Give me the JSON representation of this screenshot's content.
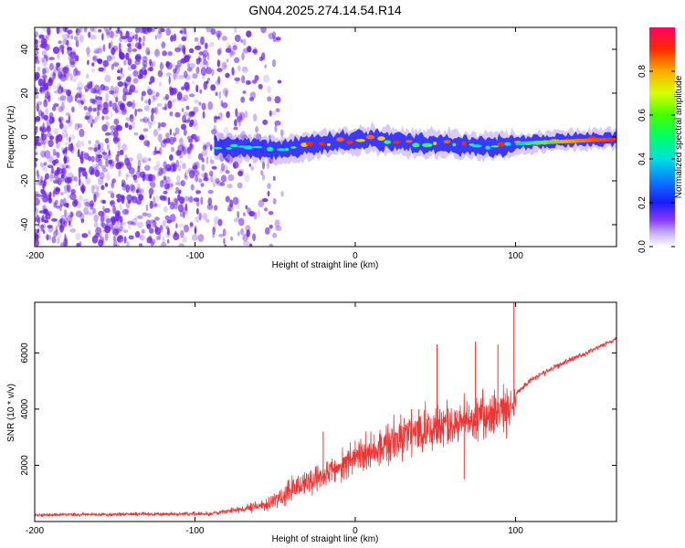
{
  "title": "GN04.2025.274.14.54.R14",
  "colors": {
    "snr_line": "#f03434",
    "noise_purple": "#6a1fe8",
    "axis": "#000000",
    "tick": "#000000"
  },
  "chart_data": [
    {
      "type": "heatmap",
      "name": "spectrogram",
      "xlabel": "Height of straight line (km)",
      "ylabel": "Frequency (Hz)",
      "xlim": [
        -200,
        163
      ],
      "ylim": [
        -50,
        50
      ],
      "xticks": [
        -200,
        -100,
        0,
        100
      ],
      "yticks": [
        -40,
        -20,
        0,
        20,
        40
      ],
      "xtick_labels": [
        "-200",
        "-100",
        "0",
        "100"
      ],
      "ytick_labels": [
        "-40",
        "-20",
        "0",
        "20",
        "40"
      ],
      "noise_region_km": [
        -200,
        -55
      ],
      "signal_start_km": -88,
      "signal_track_hz": [
        [
          -88,
          -4
        ],
        [
          -70,
          -5
        ],
        [
          -50,
          -6
        ],
        [
          -30,
          -4
        ],
        [
          -10,
          -2
        ],
        [
          0,
          -2
        ],
        [
          10,
          -1
        ],
        [
          20,
          -2
        ],
        [
          30,
          -2
        ],
        [
          40,
          -3
        ],
        [
          50,
          -3
        ],
        [
          60,
          -3
        ],
        [
          70,
          -4
        ],
        [
          80,
          -4
        ],
        [
          90,
          -4
        ],
        [
          100,
          -3
        ],
        [
          120,
          -2
        ],
        [
          140,
          -1
        ],
        [
          163,
          -1
        ]
      ],
      "colorbar": {
        "label": "Normalized spectral amplitude",
        "range": [
          0,
          1
        ],
        "ticks": [
          0.0,
          0.2,
          0.4,
          0.6,
          0.8
        ],
        "tick_labels": [
          "0.0",
          "0.2",
          "0.4",
          "0.6",
          "0.8"
        ]
      }
    },
    {
      "type": "line",
      "name": "snr",
      "xlabel": "Height of straight line (km)",
      "ylabel": "SNR (10 * v/v)",
      "xlim": [
        -200,
        163
      ],
      "ylim": [
        0,
        7800
      ],
      "xticks": [
        -200,
        -100,
        0,
        100
      ],
      "yticks": [
        2000,
        4000,
        6000
      ],
      "xtick_labels": [
        "-200",
        "-100",
        "0",
        "100"
      ],
      "ytick_labels": [
        "2000",
        "4000",
        "6000"
      ],
      "envelope_x": [
        -200,
        -90,
        -70,
        -55,
        -40,
        -20,
        0,
        20,
        40,
        60,
        80,
        98,
        101,
        110,
        130,
        150,
        163
      ],
      "envelope_y": [
        230,
        280,
        450,
        600,
        1050,
        1650,
        2300,
        2800,
        3250,
        3500,
        3750,
        4000,
        4600,
        5050,
        5650,
        6150,
        6500
      ],
      "envelope_amp": [
        80,
        110,
        180,
        350,
        650,
        700,
        900,
        1050,
        1100,
        1150,
        1200,
        1300,
        160,
        150,
        140,
        120,
        110
      ],
      "spikes": [
        {
          "x": 99,
          "y": 7800
        },
        {
          "x": 89,
          "y": 6300
        },
        {
          "x": 75,
          "y": 6400
        },
        {
          "x": 51,
          "y": 6300
        },
        {
          "x": -20,
          "y": 3200
        },
        {
          "x": 68,
          "y": 1500
        }
      ]
    }
  ]
}
